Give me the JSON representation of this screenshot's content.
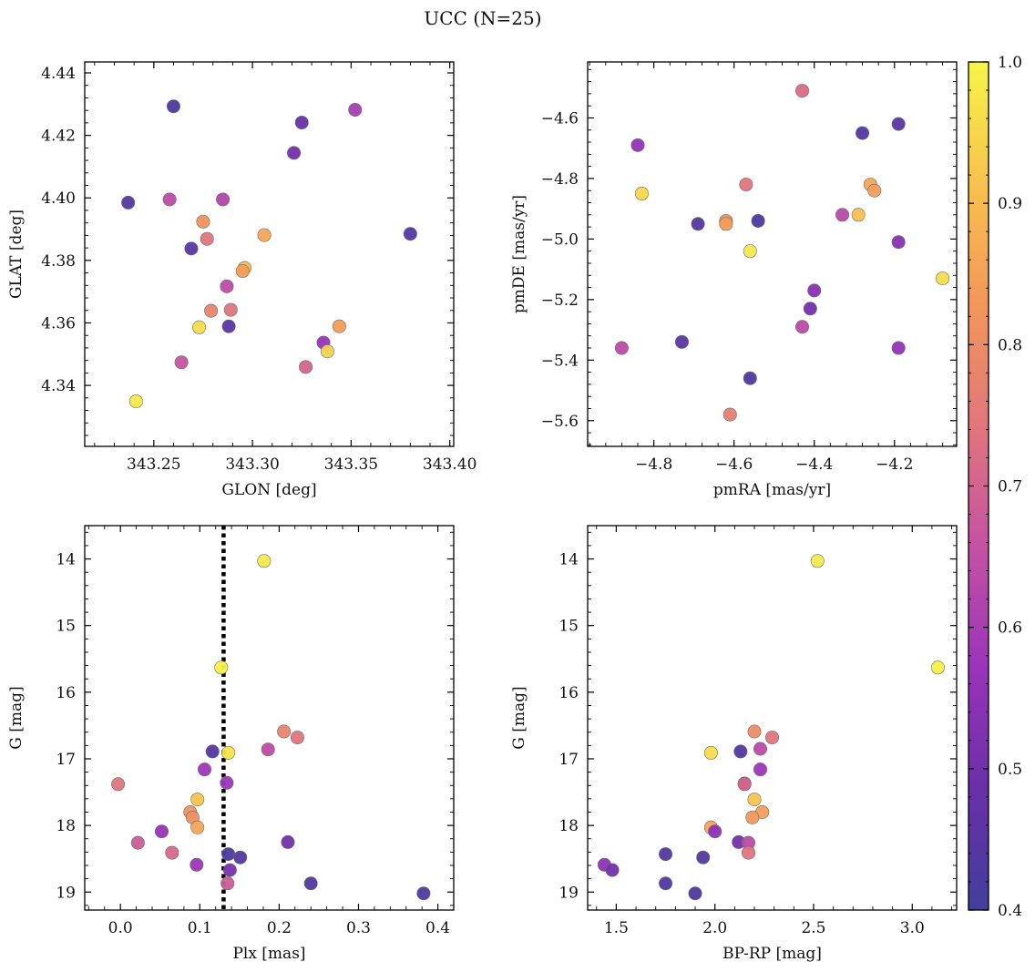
{
  "figure": {
    "title": "UCC (N=25)"
  },
  "colorbar": {
    "range": [
      0.4,
      1.0
    ],
    "ticks": [
      0.4,
      0.5,
      0.6,
      0.7,
      0.8,
      0.9,
      1.0
    ],
    "tick_labels": [
      "0.4",
      "0.5",
      "0.6",
      "0.7",
      "0.8",
      "0.9",
      "1.0"
    ],
    "colormap": "plasma",
    "colormap_stops": [
      "#413f9b",
      "#6a2fa8",
      "#9a34ba",
      "#c452a2",
      "#e1767c",
      "#f2975a",
      "#f8c24e",
      "#f5f548"
    ]
  },
  "chart_data": [
    {
      "type": "scatter",
      "name": "position",
      "xlabel": "GLON [deg]",
      "ylabel": "GLAT [deg]",
      "xlim": [
        343.215,
        343.402
      ],
      "ylim": [
        4.3205,
        4.4435
      ],
      "xticks": [
        343.25,
        343.3,
        343.35,
        343.4
      ],
      "xtick_labels": [
        "343.25",
        "343.30",
        "343.35",
        "343.40"
      ],
      "yticks": [
        4.34,
        4.36,
        4.38,
        4.4,
        4.42,
        4.44
      ],
      "ytick_labels": [
        "4.34",
        "4.36",
        "4.38",
        "4.40",
        "4.42",
        "4.44"
      ],
      "x": [
        343.26,
        343.325,
        343.352,
        343.321,
        343.237,
        343.258,
        343.285,
        343.275,
        343.38,
        343.306,
        343.277,
        343.269,
        343.296,
        343.295,
        343.287,
        343.289,
        343.279,
        343.273,
        343.288,
        343.344,
        343.336,
        343.338,
        343.264,
        343.327,
        343.241
      ],
      "y": [
        4.4293,
        4.4241,
        4.4282,
        4.4144,
        4.3985,
        4.3995,
        4.3995,
        4.3924,
        4.3885,
        4.3881,
        4.3869,
        4.3838,
        4.3776,
        4.3766,
        4.3717,
        4.3642,
        4.3639,
        4.3586,
        4.3589,
        4.3589,
        4.3537,
        4.3509,
        4.3474,
        4.3459,
        4.3349
      ],
      "c": [
        0.43,
        0.48,
        0.6,
        0.5,
        0.44,
        0.64,
        0.62,
        0.82,
        0.44,
        0.86,
        0.74,
        0.45,
        0.9,
        0.84,
        0.64,
        0.74,
        0.78,
        0.96,
        0.45,
        0.84,
        0.57,
        0.94,
        0.66,
        0.7,
        0.98
      ]
    },
    {
      "type": "scatter",
      "name": "proper-motion",
      "xlabel": "pmRA [mas/yr]",
      "ylabel": "pmDE [mas/yr]",
      "xlim": [
        -4.965,
        -4.045
      ],
      "ylim": [
        -5.685,
        -4.415
      ],
      "xticks": [
        -4.8,
        -4.6,
        -4.4,
        -4.2
      ],
      "xtick_labels": [
        "−4.8",
        "−4.6",
        "−4.4",
        "−4.2"
      ],
      "yticks": [
        -5.6,
        -5.4,
        -5.2,
        -5.0,
        -4.8,
        -4.6
      ],
      "ytick_labels": [
        "−5.6",
        "−5.4",
        "−5.2",
        "−5.0",
        "−4.8",
        "−4.6"
      ],
      "x": [
        -4.43,
        -4.19,
        -4.28,
        -4.84,
        -4.83,
        -4.57,
        -4.26,
        -4.25,
        -4.33,
        -4.29,
        -4.69,
        -4.62,
        -4.54,
        -4.62,
        -4.19,
        -4.56,
        -4.08,
        -4.4,
        -4.41,
        -4.43,
        -4.73,
        -4.88,
        -4.19,
        -4.56,
        -4.61
      ],
      "y": [
        -4.51,
        -4.62,
        -4.65,
        -4.69,
        -4.85,
        -4.82,
        -4.82,
        -4.84,
        -4.92,
        -4.92,
        -4.95,
        -4.94,
        -4.94,
        -4.95,
        -5.01,
        -5.04,
        -5.13,
        -5.17,
        -5.23,
        -5.29,
        -5.34,
        -5.36,
        -5.36,
        -5.46,
        -5.58
      ],
      "c": [
        0.72,
        0.45,
        0.44,
        0.56,
        0.95,
        0.74,
        0.86,
        0.84,
        0.63,
        0.91,
        0.44,
        0.82,
        0.43,
        0.84,
        0.54,
        0.98,
        0.96,
        0.54,
        0.5,
        0.64,
        0.45,
        0.64,
        0.56,
        0.43,
        0.77
      ]
    },
    {
      "type": "scatter",
      "name": "plx-magnitude",
      "xlabel": "Plx [mas]",
      "ylabel": "G [mag]",
      "xlim": [
        -0.045,
        0.42
      ],
      "ylim": [
        19.27,
        13.5
      ],
      "y_inverted": true,
      "xticks": [
        0.0,
        0.1,
        0.2,
        0.3,
        0.4
      ],
      "xtick_labels": [
        "0.0",
        "0.1",
        "0.2",
        "0.3",
        "0.4"
      ],
      "yticks": [
        14,
        15,
        16,
        17,
        18,
        19
      ],
      "ytick_labels": [
        "14",
        "15",
        "16",
        "17",
        "18",
        "19"
      ],
      "vline": {
        "x": 0.13,
        "style": "dotted"
      },
      "x": [
        0.181,
        0.127,
        0.206,
        0.223,
        0.186,
        0.136,
        0.116,
        0.106,
        -0.003,
        0.134,
        0.097,
        0.088,
        0.091,
        0.052,
        0.097,
        0.022,
        0.211,
        0.065,
        0.136,
        0.151,
        0.096,
        0.138,
        0.135,
        0.24,
        0.382
      ],
      "y": [
        14.03,
        15.63,
        16.59,
        16.68,
        16.86,
        16.91,
        16.89,
        17.16,
        17.38,
        17.36,
        17.61,
        17.8,
        17.88,
        18.09,
        18.03,
        18.26,
        18.25,
        18.41,
        18.43,
        18.48,
        18.59,
        18.67,
        18.87,
        18.87,
        19.02
      ],
      "c": [
        0.98,
        0.99,
        0.78,
        0.74,
        0.64,
        0.97,
        0.44,
        0.58,
        0.74,
        0.58,
        0.92,
        0.82,
        0.81,
        0.57,
        0.86,
        0.68,
        0.5,
        0.71,
        0.42,
        0.44,
        0.58,
        0.51,
        0.68,
        0.43,
        0.43
      ]
    },
    {
      "type": "scatter",
      "name": "color-magnitude",
      "xlabel": "BP-RP [mag]",
      "ylabel": "G [mag]",
      "xlim": [
        1.355,
        3.225
      ],
      "ylim": [
        19.27,
        13.5
      ],
      "y_inverted": true,
      "xticks": [
        1.5,
        2.0,
        2.5,
        3.0
      ],
      "xtick_labels": [
        "1.5",
        "2.0",
        "2.5",
        "3.0"
      ],
      "yticks": [
        14,
        15,
        16,
        17,
        18,
        19
      ],
      "ytick_labels": [
        "14",
        "15",
        "16",
        "17",
        "18",
        "19"
      ],
      "x": [
        2.52,
        3.13,
        2.2,
        2.29,
        2.23,
        1.98,
        2.13,
        2.23,
        2.15,
        2.15,
        2.2,
        2.24,
        2.19,
        1.98,
        2.0,
        2.12,
        2.17,
        2.17,
        1.75,
        1.94,
        1.44,
        1.48,
        1.75,
        1.9
      ],
      "y": [
        14.03,
        15.63,
        16.59,
        16.68,
        16.85,
        16.91,
        16.89,
        17.16,
        17.37,
        17.38,
        17.61,
        17.8,
        17.88,
        18.03,
        18.09,
        18.25,
        18.26,
        18.41,
        18.43,
        18.48,
        18.59,
        18.67,
        18.87,
        19.02
      ],
      "c": [
        0.98,
        0.99,
        0.8,
        0.74,
        0.64,
        0.96,
        0.44,
        0.58,
        0.7,
        0.7,
        0.92,
        0.84,
        0.83,
        0.86,
        0.55,
        0.5,
        0.64,
        0.74,
        0.44,
        0.44,
        0.55,
        0.5,
        0.43,
        0.43
      ]
    }
  ]
}
